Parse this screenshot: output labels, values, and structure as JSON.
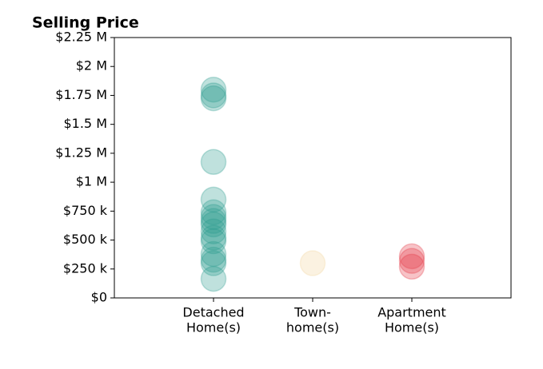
{
  "chart_data": {
    "type": "strip",
    "title": "Selling Price",
    "categories": [
      [
        "Detached",
        "Home(s)"
      ],
      [
        "Town-",
        "home(s)"
      ],
      [
        "Apartment",
        "Home(s)"
      ]
    ],
    "values": [
      [
        1800000,
        1750000,
        1725000,
        1175000,
        850000,
        740000,
        700000,
        665000,
        635000,
        575000,
        520000,
        490000,
        380000,
        330000,
        300000,
        165000
      ],
      [
        300000
      ],
      [
        360000,
        320000,
        270000
      ]
    ],
    "colors": [
      "#2a9d8f",
      "#f2d49b",
      "#e63946"
    ],
    "ylim": [
      0,
      2250000
    ],
    "yticks": [
      {
        "value": 0,
        "label": "$0"
      },
      {
        "value": 250000,
        "label": "$250 k"
      },
      {
        "value": 500000,
        "label": "$500 k"
      },
      {
        "value": 750000,
        "label": "$750 k"
      },
      {
        "value": 1000000,
        "label": "$1 M"
      },
      {
        "value": 1250000,
        "label": "$1.25 M"
      },
      {
        "value": 1500000,
        "label": "$1.5 M"
      },
      {
        "value": 1750000,
        "label": "$1.75 M"
      },
      {
        "value": 2000000,
        "label": "$2 M"
      },
      {
        "value": 2250000,
        "label": "$2.25 M"
      }
    ]
  }
}
